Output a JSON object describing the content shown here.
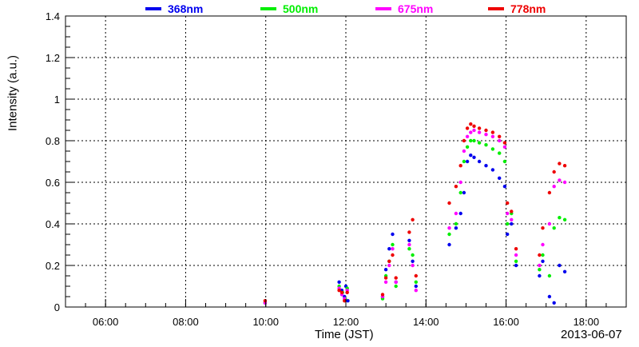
{
  "chart_data": {
    "type": "scatter",
    "title": "",
    "xlabel": "Time (JST)",
    "ylabel": "Intensity (a.u.)",
    "date_label": "2013-06-07",
    "xlim": [
      "05:00",
      "19:00"
    ],
    "ylim": [
      0,
      1.4
    ],
    "grid": true,
    "legend_placement": "top",
    "x_ticks": [
      "06:00",
      "08:00",
      "10:00",
      "12:00",
      "14:00",
      "16:00",
      "18:00"
    ],
    "y_ticks": [
      "0",
      "0.2",
      "0.4",
      "0.6",
      "0.8",
      "1",
      "1.2",
      "1.4"
    ],
    "series": [
      {
        "name": "368nm",
        "color": "#0000ee",
        "points": [
          [
            "09:59",
            0.02
          ],
          [
            "11:50",
            0.12
          ],
          [
            "11:54",
            0.08
          ],
          [
            "11:58",
            0.05
          ],
          [
            "12:00",
            0.1
          ],
          [
            "12:03",
            0.03
          ],
          [
            "12:55",
            0.05
          ],
          [
            "13:00",
            0.18
          ],
          [
            "13:05",
            0.28
          ],
          [
            "13:10",
            0.35
          ],
          [
            "13:15",
            0.12
          ],
          [
            "13:35",
            0.32
          ],
          [
            "13:40",
            0.22
          ],
          [
            "13:45",
            0.1
          ],
          [
            "14:35",
            0.3
          ],
          [
            "14:45",
            0.38
          ],
          [
            "14:52",
            0.45
          ],
          [
            "14:57",
            0.55
          ],
          [
            "15:02",
            0.7
          ],
          [
            "15:07",
            0.73
          ],
          [
            "15:12",
            0.72
          ],
          [
            "15:20",
            0.7
          ],
          [
            "15:30",
            0.68
          ],
          [
            "15:40",
            0.66
          ],
          [
            "15:50",
            0.62
          ],
          [
            "15:58",
            0.58
          ],
          [
            "16:02",
            0.35
          ],
          [
            "16:08",
            0.4
          ],
          [
            "16:15",
            0.2
          ],
          [
            "16:50",
            0.15
          ],
          [
            "16:55",
            0.22
          ],
          [
            "17:05",
            0.05
          ],
          [
            "17:12",
            0.02
          ],
          [
            "17:20",
            0.2
          ],
          [
            "17:28",
            0.17
          ]
        ]
      },
      {
        "name": "500nm",
        "color": "#00ee00",
        "points": [
          [
            "09:59",
            0.02
          ],
          [
            "11:50",
            0.1
          ],
          [
            "11:55",
            0.07
          ],
          [
            "11:59",
            0.04
          ],
          [
            "12:02",
            0.09
          ],
          [
            "12:55",
            0.04
          ],
          [
            "13:00",
            0.15
          ],
          [
            "13:05",
            0.22
          ],
          [
            "13:10",
            0.3
          ],
          [
            "13:15",
            0.1
          ],
          [
            "13:35",
            0.28
          ],
          [
            "13:40",
            0.25
          ],
          [
            "13:45",
            0.12
          ],
          [
            "14:35",
            0.35
          ],
          [
            "14:45",
            0.4
          ],
          [
            "14:52",
            0.55
          ],
          [
            "14:57",
            0.7
          ],
          [
            "15:02",
            0.77
          ],
          [
            "15:07",
            0.8
          ],
          [
            "15:12",
            0.8
          ],
          [
            "15:20",
            0.79
          ],
          [
            "15:30",
            0.78
          ],
          [
            "15:40",
            0.76
          ],
          [
            "15:50",
            0.74
          ],
          [
            "15:58",
            0.7
          ],
          [
            "16:02",
            0.4
          ],
          [
            "16:08",
            0.45
          ],
          [
            "16:15",
            0.22
          ],
          [
            "16:50",
            0.18
          ],
          [
            "16:55",
            0.25
          ],
          [
            "17:05",
            0.15
          ],
          [
            "17:12",
            0.38
          ],
          [
            "17:20",
            0.43
          ],
          [
            "17:28",
            0.42
          ]
        ]
      },
      {
        "name": "675nm",
        "color": "#ff00ff",
        "points": [
          [
            "09:59",
            0.02
          ],
          [
            "11:50",
            0.09
          ],
          [
            "11:54",
            0.06
          ],
          [
            "11:58",
            0.04
          ],
          [
            "12:02",
            0.08
          ],
          [
            "12:55",
            0.05
          ],
          [
            "13:00",
            0.12
          ],
          [
            "13:05",
            0.2
          ],
          [
            "13:10",
            0.28
          ],
          [
            "13:15",
            0.12
          ],
          [
            "13:35",
            0.3
          ],
          [
            "13:40",
            0.2
          ],
          [
            "13:45",
            0.08
          ],
          [
            "14:35",
            0.38
          ],
          [
            "14:45",
            0.45
          ],
          [
            "14:52",
            0.6
          ],
          [
            "14:57",
            0.75
          ],
          [
            "15:02",
            0.82
          ],
          [
            "15:07",
            0.84
          ],
          [
            "15:12",
            0.85
          ],
          [
            "15:20",
            0.84
          ],
          [
            "15:30",
            0.83
          ],
          [
            "15:40",
            0.82
          ],
          [
            "15:50",
            0.8
          ],
          [
            "15:58",
            0.77
          ],
          [
            "16:02",
            0.45
          ],
          [
            "16:08",
            0.42
          ],
          [
            "16:15",
            0.25
          ],
          [
            "16:50",
            0.2
          ],
          [
            "16:55",
            0.3
          ],
          [
            "17:05",
            0.4
          ],
          [
            "17:12",
            0.58
          ],
          [
            "17:20",
            0.61
          ],
          [
            "17:28",
            0.6
          ]
        ]
      },
      {
        "name": "778nm",
        "color": "#ee0000",
        "points": [
          [
            "09:59",
            0.03
          ],
          [
            "11:50",
            0.08
          ],
          [
            "11:54",
            0.07
          ],
          [
            "11:58",
            0.03
          ],
          [
            "12:02",
            0.07
          ],
          [
            "12:55",
            0.06
          ],
          [
            "13:00",
            0.14
          ],
          [
            "13:05",
            0.22
          ],
          [
            "13:10",
            0.25
          ],
          [
            "13:15",
            0.14
          ],
          [
            "13:35",
            0.36
          ],
          [
            "13:40",
            0.42
          ],
          [
            "13:45",
            0.15
          ],
          [
            "14:35",
            0.5
          ],
          [
            "14:45",
            0.58
          ],
          [
            "14:52",
            0.68
          ],
          [
            "14:57",
            0.8
          ],
          [
            "15:02",
            0.86
          ],
          [
            "15:07",
            0.88
          ],
          [
            "15:12",
            0.87
          ],
          [
            "15:20",
            0.86
          ],
          [
            "15:30",
            0.85
          ],
          [
            "15:40",
            0.84
          ],
          [
            "15:50",
            0.82
          ],
          [
            "15:58",
            0.79
          ],
          [
            "16:02",
            0.5
          ],
          [
            "16:08",
            0.46
          ],
          [
            "16:15",
            0.28
          ],
          [
            "16:50",
            0.25
          ],
          [
            "16:55",
            0.38
          ],
          [
            "17:05",
            0.55
          ],
          [
            "17:12",
            0.65
          ],
          [
            "17:20",
            0.69
          ],
          [
            "17:28",
            0.68
          ]
        ]
      }
    ]
  }
}
